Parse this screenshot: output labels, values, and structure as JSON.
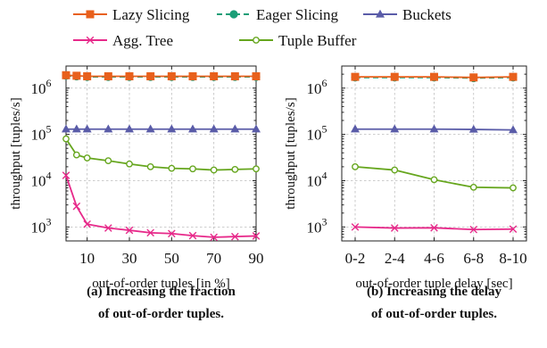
{
  "legend": [
    {
      "name": "Lazy Slicing",
      "color": "#e8601c",
      "marker": "square",
      "dash": "solid"
    },
    {
      "name": "Eager Slicing",
      "color": "#1a9e77",
      "marker": "circle",
      "dash": "dashed"
    },
    {
      "name": "Buckets",
      "color": "#5a5ca8",
      "marker": "triangle",
      "dash": "solid"
    },
    {
      "name": "Agg. Tree",
      "color": "#e7298a",
      "marker": "cross",
      "dash": "solid"
    },
    {
      "name": "Tuple Buffer",
      "color": "#66a61e",
      "marker": "open-circle",
      "dash": "solid"
    }
  ],
  "chart_data": [
    {
      "type": "line",
      "title": "",
      "caption_line1": "(a) Increasing the fraction",
      "caption_line2": "of out-of-order tuples.",
      "xlabel": "out-of-order tuples [in %]",
      "ylabel": "throughput [tuples/s]",
      "yscale": "log",
      "ylim": [
        500,
        3000000
      ],
      "xlim": [
        0,
        90
      ],
      "x_categorical": false,
      "xticks": [
        10,
        30,
        50,
        70,
        90
      ],
      "xtick_labels": [
        "10",
        "30",
        "50",
        "70",
        "90"
      ],
      "yticks": [
        1000,
        10000,
        100000,
        1000000
      ],
      "ytick_labels": [
        {
          "base": "10",
          "exp": "3"
        },
        {
          "base": "10",
          "exp": "4"
        },
        {
          "base": "10",
          "exp": "5"
        },
        {
          "base": "10",
          "exp": "6"
        }
      ],
      "x": [
        0,
        5,
        10,
        20,
        30,
        40,
        50,
        60,
        70,
        80,
        90
      ],
      "series": [
        {
          "name": "Lazy Slicing",
          "values": [
            1900000,
            1850000,
            1800000,
            1800000,
            1800000,
            1800000,
            1800000,
            1800000,
            1800000,
            1800000,
            1800000
          ]
        },
        {
          "name": "Eager Slicing",
          "values": [
            1850000,
            1800000,
            1750000,
            1750000,
            1750000,
            1750000,
            1750000,
            1750000,
            1750000,
            1750000,
            1750000
          ]
        },
        {
          "name": "Buckets",
          "values": [
            130000,
            130000,
            130000,
            130000,
            130000,
            130000,
            130000,
            130000,
            130000,
            130000,
            130000
          ]
        },
        {
          "name": "Agg. Tree",
          "values": [
            13000,
            2800,
            1150,
            950,
            850,
            750,
            720,
            650,
            600,
            620,
            640
          ]
        },
        {
          "name": "Tuple Buffer",
          "values": [
            80000,
            36000,
            31000,
            27000,
            23000,
            20000,
            18500,
            18000,
            17000,
            17500,
            18000
          ]
        }
      ]
    },
    {
      "type": "line",
      "title": "",
      "caption_line1": "(b) Increasing the delay",
      "caption_line2": "of out-of-order tuples.",
      "xlabel": "out-of-order tuple delay [sec]",
      "ylabel": "throughput [tuples/s]",
      "yscale": "log",
      "ylim": [
        500,
        3000000
      ],
      "x_categorical": true,
      "categories": [
        "0-2",
        "2-4",
        "4-6",
        "6-8",
        "8-10"
      ],
      "yticks": [
        1000,
        10000,
        100000,
        1000000
      ],
      "ytick_labels": [
        {
          "base": "10",
          "exp": "3"
        },
        {
          "base": "10",
          "exp": "4"
        },
        {
          "base": "10",
          "exp": "5"
        },
        {
          "base": "10",
          "exp": "6"
        }
      ],
      "series": [
        {
          "name": "Lazy Slicing",
          "values": [
            1750000,
            1750000,
            1750000,
            1700000,
            1750000
          ]
        },
        {
          "name": "Eager Slicing",
          "values": [
            1700000,
            1700000,
            1700000,
            1650000,
            1700000
          ]
        },
        {
          "name": "Buckets",
          "values": [
            130000,
            130000,
            130000,
            128000,
            125000
          ]
        },
        {
          "name": "Agg. Tree",
          "values": [
            1000,
            950,
            960,
            880,
            900
          ]
        },
        {
          "name": "Tuple Buffer",
          "values": [
            20000,
            17000,
            10500,
            7200,
            7000
          ]
        }
      ]
    }
  ]
}
